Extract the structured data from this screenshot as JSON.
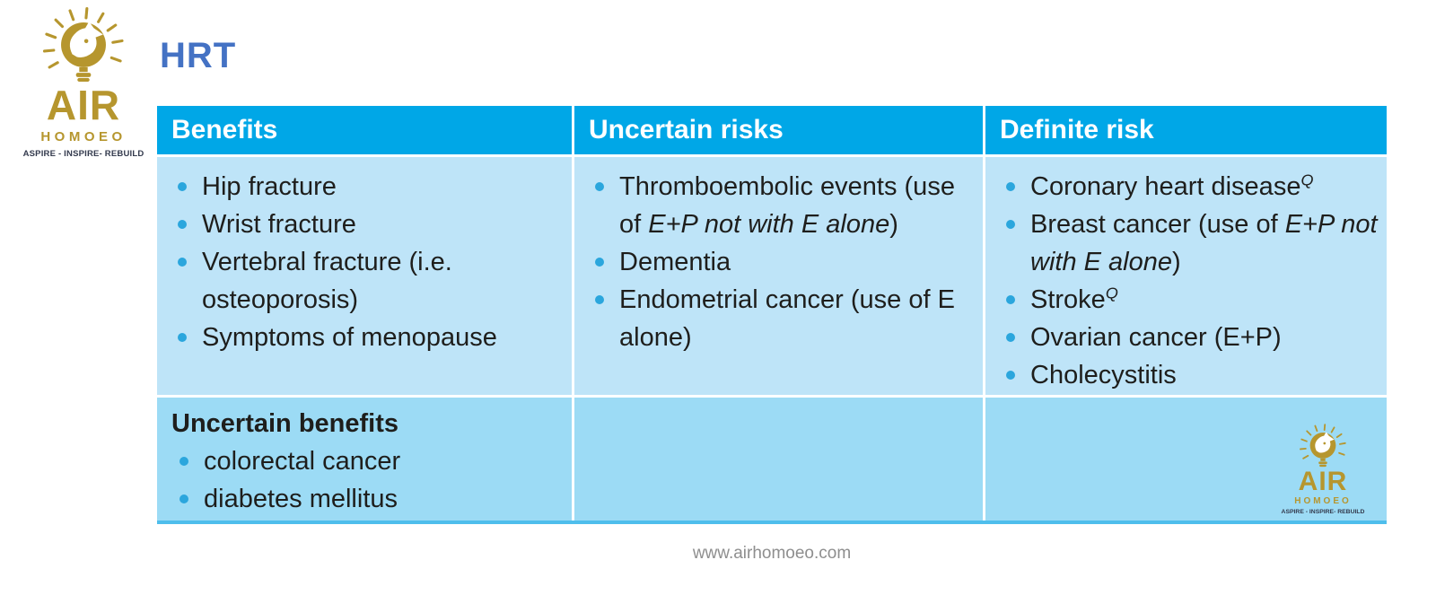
{
  "page": {
    "title": "HRT",
    "footer_url": "www.airhomoeo.com"
  },
  "logo": {
    "brand": "AIR",
    "brand_sub": "HOMOEO",
    "tagline": "ASPIRE - INSPIRE- REBUILD"
  },
  "colors": {
    "header_bg": "#00A7E7",
    "body_bg": "#BEE4F8",
    "footer_row_bg": "#9CDBF5",
    "bullet": "#2BA6DD",
    "title": "#4472C4",
    "text": "#1E1E1C",
    "logo_gold": "#B6962E",
    "logo_dark": "#333A4D",
    "footer_text": "#8E8E8E",
    "bottom_strip": "#4FBEEC"
  },
  "table": {
    "headers": [
      "Benefits",
      "Uncertain risks",
      "Definite risk"
    ],
    "columns": [
      {
        "items": [
          [
            {
              "t": "Hip fracture"
            }
          ],
          [
            {
              "t": "Wrist fracture"
            }
          ],
          [
            {
              "t": "Vertebral fracture (i.e. osteoporosis)"
            }
          ],
          [
            {
              "t": "Symptoms of menopause"
            }
          ]
        ]
      },
      {
        "items": [
          [
            {
              "t": "Thromboembolic events (use of "
            },
            {
              "t": "E+P not with E alone",
              "i": true
            },
            {
              "t": ")"
            }
          ],
          [
            {
              "t": "Dementia"
            }
          ],
          [
            {
              "t": "Endometrial cancer (use of E alone)"
            }
          ]
        ]
      },
      {
        "items": [
          [
            {
              "t": "Coronary heart disease"
            },
            {
              "t": "Q",
              "sup": true
            }
          ],
          [
            {
              "t": "Breast cancer (use of "
            },
            {
              "t": "E+P not with E alone",
              "i": true
            },
            {
              "t": ")"
            }
          ],
          [
            {
              "t": "Stroke"
            },
            {
              "t": "Q",
              "sup": true
            }
          ],
          [
            {
              "t": "Ovarian cancer (E+P)"
            }
          ],
          [
            {
              "t": "Cholecystitis"
            }
          ]
        ]
      }
    ],
    "footer_row": {
      "title": "Uncertain benefits",
      "items": [
        [
          {
            "t": "colorectal cancer"
          }
        ],
        [
          {
            "t": "diabetes mellitus"
          }
        ]
      ]
    }
  }
}
